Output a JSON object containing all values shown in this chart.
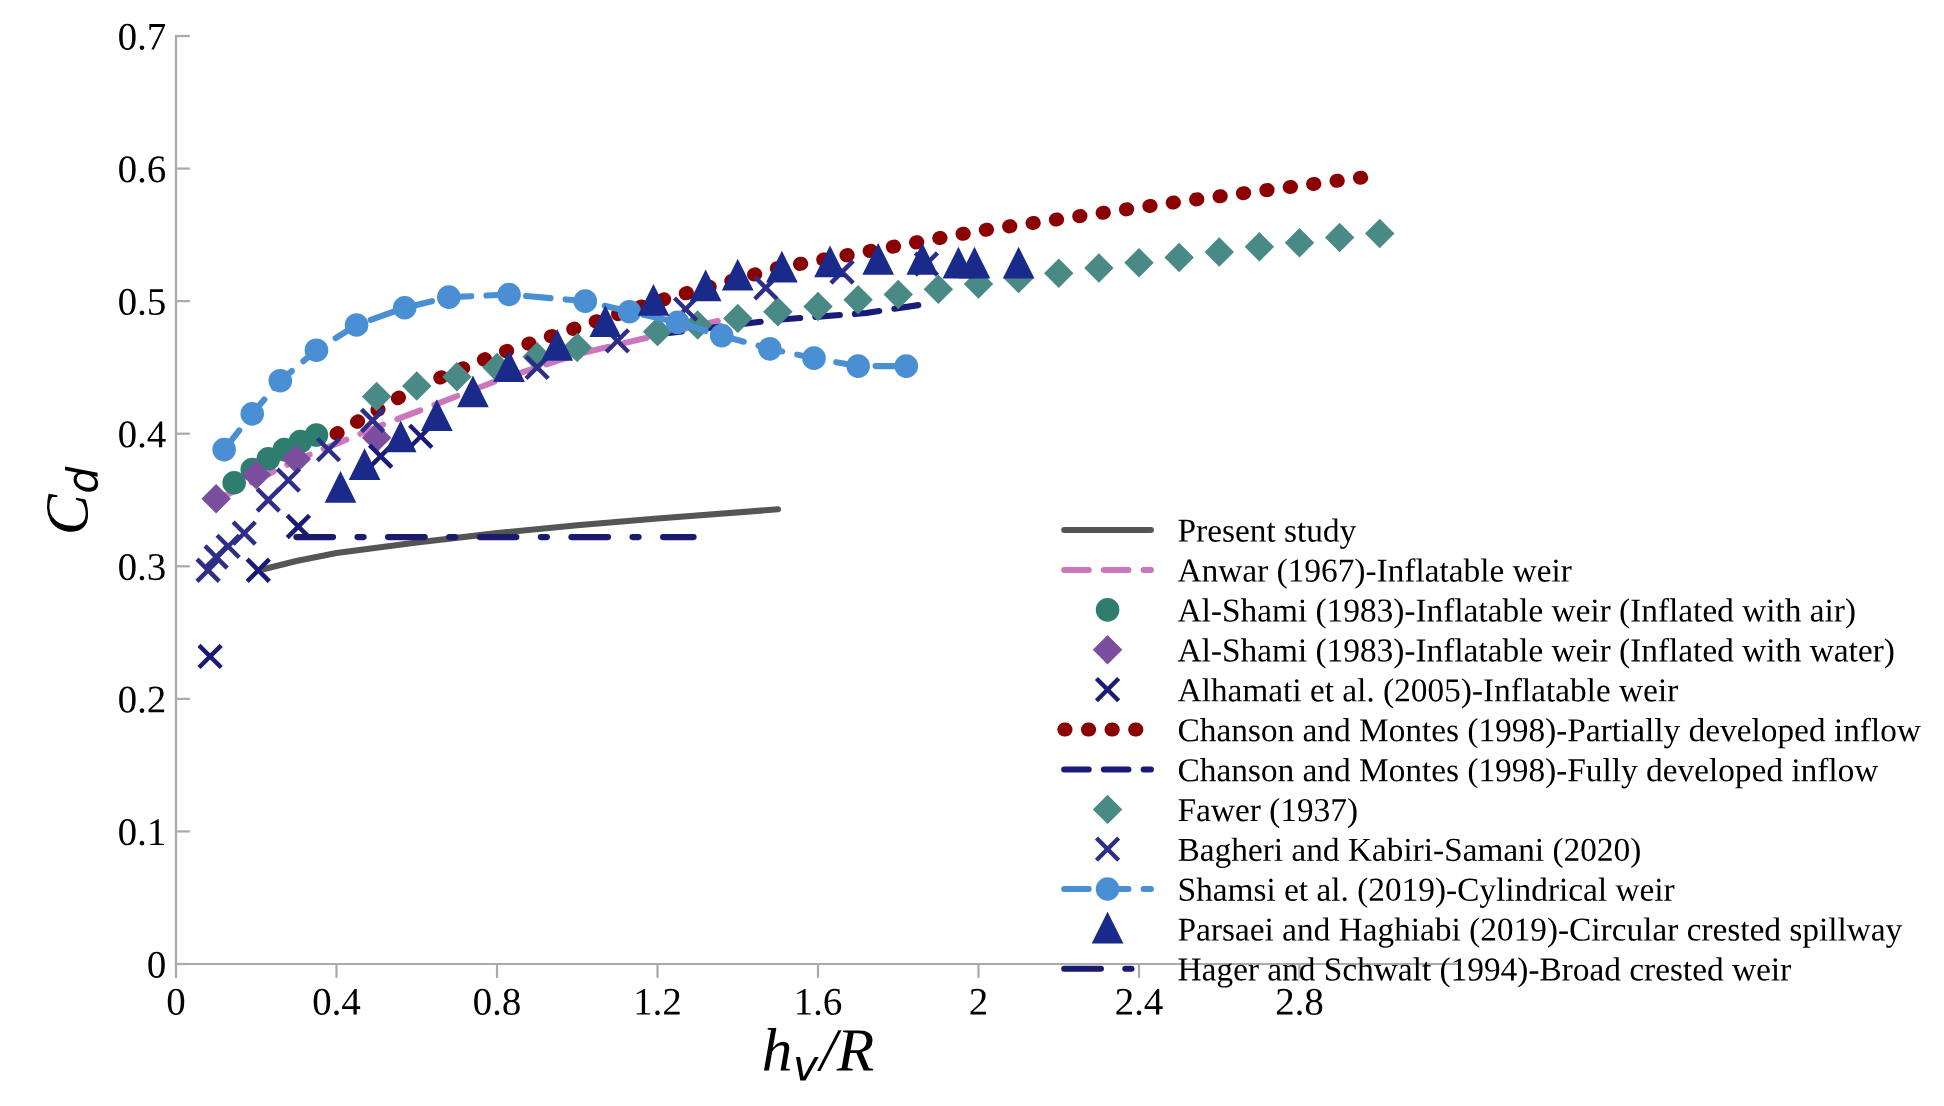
{
  "chart_data": {
    "type": "line",
    "xlabel": "h$_{v}$/R",
    "ylabel": "C$_{d}$",
    "xlim": [
      0,
      3.2
    ],
    "ylim": [
      0,
      0.7
    ],
    "xticks": [
      0,
      0.4,
      0.8,
      1.2,
      1.6,
      2,
      2.4,
      2.8
    ],
    "yticks": [
      0,
      0.1,
      0.2,
      0.3,
      0.4,
      0.5,
      0.6,
      0.7
    ],
    "grid": false,
    "legend": "right",
    "series": [
      {
        "name": "Present study",
        "type": "line",
        "color": "#555555",
        "marker": "none",
        "line_style": "solid",
        "x": [
          0.22,
          0.3,
          0.4,
          0.6,
          0.8,
          1.0,
          1.2,
          1.5
        ],
        "values": [
          0.298,
          0.304,
          0.31,
          0.318,
          0.325,
          0.331,
          0.336,
          0.343
        ]
      },
      {
        "name": "Anwar (1967)-Inflatable weir",
        "type": "line",
        "color": "#cc77bb",
        "marker": "none",
        "line_style": "dashed",
        "x": [
          0.1,
          0.3,
          0.5,
          0.8,
          1.0,
          1.35
        ],
        "values": [
          0.35,
          0.38,
          0.405,
          0.44,
          0.46,
          0.485
        ]
      },
      {
        "name": "Al-Shami (1983)-Inflatable weir (Inflated with air)",
        "type": "scatter",
        "color": "#2e7d6e",
        "marker": "circle",
        "x": [
          0.145,
          0.19,
          0.23,
          0.27,
          0.31,
          0.35
        ],
        "values": [
          0.363,
          0.373,
          0.381,
          0.388,
          0.394,
          0.399
        ]
      },
      {
        "name": "Al-Shami (1983)-Inflatable weir (Inflated with water)",
        "type": "scatter",
        "color": "#7b4f9e",
        "marker": "diamond",
        "x": [
          0.1,
          0.2,
          0.3,
          0.5
        ],
        "values": [
          0.351,
          0.369,
          0.381,
          0.397
        ]
      },
      {
        "name": "Alhamati et al. (2005)-Inflatable weir",
        "type": "scatter",
        "color": "#1a1a7a",
        "marker": "cross",
        "x": [
          0.085,
          0.205,
          0.305,
          0.51,
          0.61
        ],
        "values": [
          0.232,
          0.297,
          0.33,
          0.383,
          0.398
        ]
      },
      {
        "name": "Chanson and Montes (1998)-Partially developed inflow",
        "type": "line",
        "color": "#8b0000",
        "marker": "none",
        "line_style": "dotted",
        "x": [
          0.4,
          0.6,
          0.8,
          1.0,
          1.2,
          1.5,
          2.0,
          2.5,
          3.0
        ],
        "values": [
          0.4,
          0.435,
          0.46,
          0.48,
          0.5,
          0.525,
          0.553,
          0.575,
          0.595
        ]
      },
      {
        "name": "Chanson and Montes (1998)-Fully developed inflow",
        "type": "line",
        "color": "#1a1a7a",
        "marker": "none",
        "line_style": "dashed",
        "x": [
          1.2,
          1.5,
          1.72,
          1.85
        ],
        "values": [
          0.475,
          0.486,
          0.491,
          0.497
        ]
      },
      {
        "name": "Fawer (1937)",
        "type": "scatter",
        "color": "#4a8a86",
        "marker": "diamond",
        "x": [
          0.5,
          0.6,
          0.7,
          0.8,
          0.9,
          1.0,
          1.2,
          1.3,
          1.4,
          1.5,
          1.6,
          1.7,
          1.8,
          1.9,
          2.0,
          2.1,
          2.2,
          2.3,
          2.4,
          2.5,
          2.6,
          2.7,
          2.8,
          2.9,
          3.0
        ],
        "values": [
          0.428,
          0.436,
          0.443,
          0.45,
          0.458,
          0.465,
          0.477,
          0.482,
          0.487,
          0.492,
          0.496,
          0.501,
          0.505,
          0.509,
          0.513,
          0.517,
          0.521,
          0.525,
          0.529,
          0.533,
          0.537,
          0.541,
          0.544,
          0.548,
          0.551
        ]
      },
      {
        "name": "Bagheri and Kabiri-Samani (2020)",
        "type": "scatter",
        "color": "#2e2e8a",
        "marker": "cross",
        "x": [
          0.08,
          0.1,
          0.13,
          0.17,
          0.23,
          0.28,
          0.38,
          0.49,
          0.9,
          1.1,
          1.27,
          1.47,
          1.66,
          1.87
        ],
        "values": [
          0.297,
          0.307,
          0.315,
          0.325,
          0.35,
          0.365,
          0.388,
          0.41,
          0.45,
          0.47,
          0.494,
          0.51,
          0.522,
          0.528
        ]
      },
      {
        "name": "Shamsi et al. (2019)-Cylindrical weir",
        "type": "line",
        "color": "#4a8fd4",
        "marker": "circle",
        "line_style": "dashed",
        "x": [
          0.12,
          0.19,
          0.26,
          0.35,
          0.45,
          0.57,
          0.68,
          0.83,
          1.02,
          1.13,
          1.25,
          1.36,
          1.48,
          1.59,
          1.7,
          1.82
        ],
        "values": [
          0.388,
          0.415,
          0.44,
          0.463,
          0.482,
          0.495,
          0.503,
          0.505,
          0.5,
          0.492,
          0.484,
          0.474,
          0.464,
          0.457,
          0.451,
          0.451
        ]
      },
      {
        "name": "Parsaei and Haghiabi (2019)-Circular crested spillway",
        "type": "scatter",
        "color": "#1a2a8a",
        "marker": "triangle",
        "x": [
          0.41,
          0.47,
          0.56,
          0.65,
          0.74,
          0.83,
          0.95,
          1.07,
          1.19,
          1.32,
          1.4,
          1.51,
          1.63,
          1.75,
          1.86,
          1.95,
          1.99,
          2.1
        ],
        "values": [
          0.359,
          0.376,
          0.397,
          0.413,
          0.431,
          0.45,
          0.466,
          0.484,
          0.5,
          0.511,
          0.519,
          0.525,
          0.529,
          0.531,
          0.531,
          0.528,
          0.528,
          0.528
        ]
      },
      {
        "name": "Hager and Schwalt (1994)-Broad crested weir",
        "type": "line",
        "color": "#1a1a6e",
        "marker": "none",
        "line_style": "dashdot",
        "x": [
          0.3,
          1.29
        ],
        "values": [
          0.322,
          0.322
        ]
      }
    ]
  }
}
